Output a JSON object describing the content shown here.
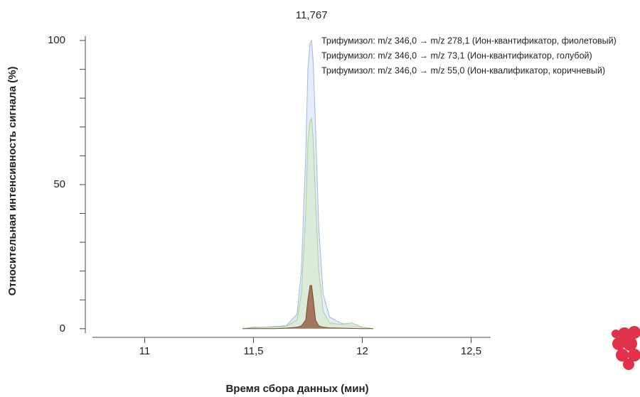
{
  "chart_data": {
    "type": "area",
    "annotation": {
      "value": 11.767,
      "label": "11,767"
    },
    "x_label": "Время сбора данных (мин)",
    "y_label": "Относительная интенсивность сигнала (%)",
    "x": [
      11.45,
      11.5,
      11.55,
      11.6,
      11.65,
      11.7,
      11.72,
      11.74,
      11.75,
      11.76,
      11.767,
      11.775,
      11.785,
      11.8,
      11.82,
      11.85,
      11.9,
      11.95,
      12.0,
      12.05
    ],
    "series": [
      {
        "name": "Трифумизол: m/z 346,0 → m/z 278,1 (Ион-квантификатор, фиолетовый)",
        "color": "#9db6e3",
        "fill": "#dbe5f6",
        "values": [
          0,
          0.5,
          0.5,
          0.8,
          1,
          5,
          20,
          60,
          90,
          99,
          100,
          92,
          70,
          35,
          12,
          4,
          2,
          1,
          0.5,
          0
        ]
      },
      {
        "name": "Трифумизол: m/z 346,0 → m/z 73,1 (Ион-квантификатор, голубой)",
        "color": "#a9cf98",
        "fill": "#d6e9cc",
        "values": [
          0,
          0.3,
          0.5,
          0.5,
          0.8,
          3,
          12,
          40,
          65,
          72,
          73,
          65,
          45,
          20,
          6,
          2,
          1.5,
          2,
          0.5,
          0
        ]
      },
      {
        "name": "Трифумизол: m/z 346,0 → m/z 55,0 (Ион-квалификатор, коричневый)",
        "color": "#7a4630",
        "fill": "#9c6a4c",
        "values": [
          0,
          0,
          0,
          0,
          0.2,
          0.5,
          1,
          3,
          10,
          15,
          15,
          10,
          3,
          1,
          0.5,
          0.3,
          0.2,
          0.1,
          0,
          0
        ]
      }
    ],
    "xlim": [
      10.76,
      12.59
    ],
    "xticks": [
      11,
      {
        "value": 11.5,
        "label": "11,5"
      },
      12,
      {
        "value": 12.5,
        "label": "12,5"
      }
    ],
    "ylim": [
      -3,
      104
    ],
    "yticks": [
      0,
      50,
      100
    ],
    "yminorticks": [
      10,
      20,
      30,
      40,
      60,
      70,
      80,
      90
    ]
  }
}
